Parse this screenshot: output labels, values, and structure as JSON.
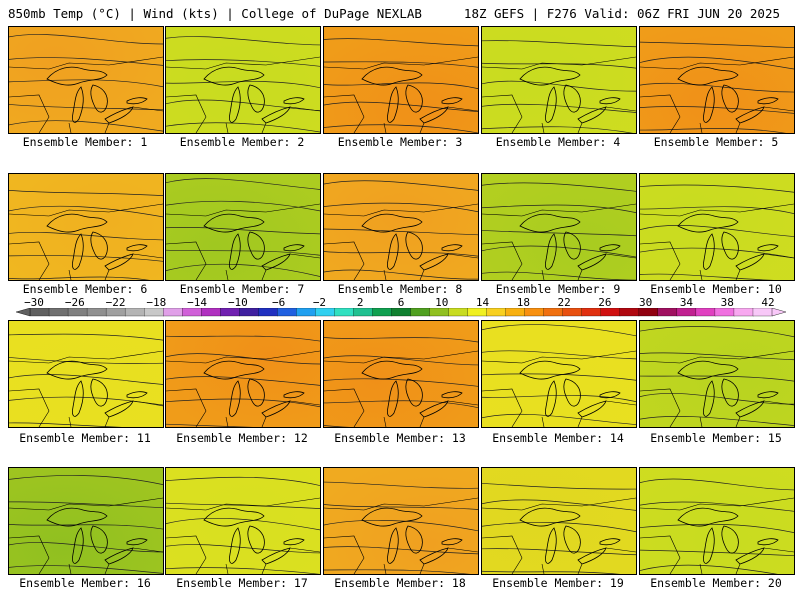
{
  "header": {
    "left": "850mb Temp (°C) | Wind (kts) | College of DuPage NEXLAB",
    "right": "18Z GEFS | F276 Valid: 06Z FRI JUN 20 2025"
  },
  "colorbar": {
    "labels": [
      "−30",
      "−26",
      "−22",
      "−18",
      "−14",
      "−10",
      "−6",
      "−2",
      "2",
      "6",
      "10",
      "14",
      "18",
      "22",
      "26",
      "30",
      "34",
      "38",
      "42"
    ],
    "colors": [
      "#606060",
      "#707070",
      "#808080",
      "#909090",
      "#a0a0a0",
      "#b4b4b4",
      "#c8c8c8",
      "#e0a0e8",
      "#d060d8",
      "#b030c0",
      "#7020b0",
      "#4020a0",
      "#2030c0",
      "#2060e0",
      "#20a0f0",
      "#30d0f0",
      "#30e0c0",
      "#20c090",
      "#10a050",
      "#108030",
      "#50a020",
      "#90c020",
      "#c8dc20",
      "#f0f020",
      "#f8d020",
      "#f8b010",
      "#f89010",
      "#f07010",
      "#e85010",
      "#e03010",
      "#d01010",
      "#b00810",
      "#900010",
      "#a01060",
      "#c02090",
      "#e040c0",
      "#f070e0",
      "#f8a8f0",
      "#f8c8f8"
    ]
  },
  "panels": [
    {
      "label": "Ensemble Member: 1",
      "base": "#f0a020"
    },
    {
      "label": "Ensemble Member: 2",
      "base": "#c8dc20"
    },
    {
      "label": "Ensemble Member: 3",
      "base": "#f09018"
    },
    {
      "label": "Ensemble Member: 4",
      "base": "#c8dc20"
    },
    {
      "label": "Ensemble Member: 5",
      "base": "#f09018"
    },
    {
      "label": "Ensemble Member: 6",
      "base": "#f0b020"
    },
    {
      "label": "Ensemble Member: 7",
      "base": "#a0c820"
    },
    {
      "label": "Ensemble Member: 8",
      "base": "#f0a020"
    },
    {
      "label": "Ensemble Member: 9",
      "base": "#a8cc20"
    },
    {
      "label": "Ensemble Member: 10",
      "base": "#c8dc20"
    },
    {
      "label": "Ensemble Member: 11",
      "base": "#e8e020"
    },
    {
      "label": "Ensemble Member: 12",
      "base": "#f09018"
    },
    {
      "label": "Ensemble Member: 13",
      "base": "#f09018"
    },
    {
      "label": "Ensemble Member: 14",
      "base": "#e8e020"
    },
    {
      "label": "Ensemble Member: 15",
      "base": "#b8d420"
    },
    {
      "label": "Ensemble Member: 16",
      "base": "#90c020"
    },
    {
      "label": "Ensemble Member: 17",
      "base": "#d8e020"
    },
    {
      "label": "Ensemble Member: 18",
      "base": "#f0a020"
    },
    {
      "label": "Ensemble Member: 19",
      "base": "#e0d820"
    },
    {
      "label": "Ensemble Member: 20",
      "base": "#c8dc20"
    }
  ]
}
